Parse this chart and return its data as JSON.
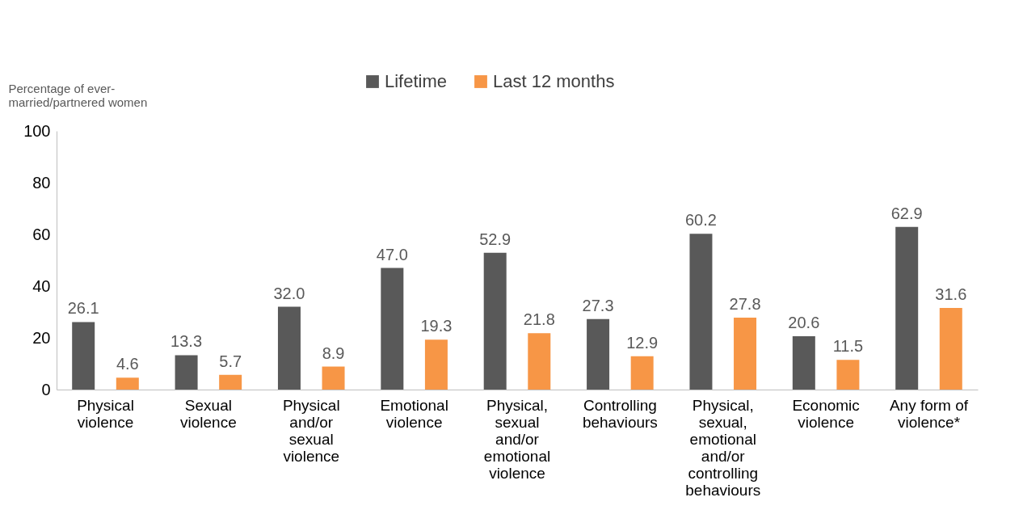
{
  "chart_data": {
    "type": "bar",
    "ylabel": "Percentage of ever-married/partnered women",
    "categories": [
      "Physical violence",
      "Sexual violence",
      "Physical and/or sexual violence",
      "Emotional violence",
      "Physical, sexual and/or emotional violence",
      "Controlling behaviours",
      "Physical, sexual, emotional and/or controlling behaviours",
      "Economic violence",
      "Any form of violence*"
    ],
    "series": [
      {
        "name": "Lifetime",
        "color": "#595959",
        "values": [
          26.1,
          13.3,
          32.0,
          47.0,
          52.9,
          27.3,
          60.2,
          20.6,
          62.9
        ],
        "value_labels": [
          "26.1",
          "13.3",
          "32.0",
          "47.0",
          "52.9",
          "27.3",
          "60.2",
          "20.6",
          "62.9"
        ]
      },
      {
        "name": "Last 12 months",
        "color": "#f79646",
        "values": [
          4.6,
          5.7,
          8.9,
          19.3,
          21.8,
          12.9,
          27.8,
          11.5,
          31.6
        ],
        "value_labels": [
          "4.6",
          "5.7",
          "8.9",
          "19.3",
          "21.8",
          "12.9",
          "27.8",
          "11.5",
          "31.6"
        ]
      }
    ],
    "ylim": [
      0,
      100
    ],
    "yticks": [
      0,
      20,
      40,
      60,
      80,
      100
    ],
    "grid": false,
    "legend": "top"
  }
}
